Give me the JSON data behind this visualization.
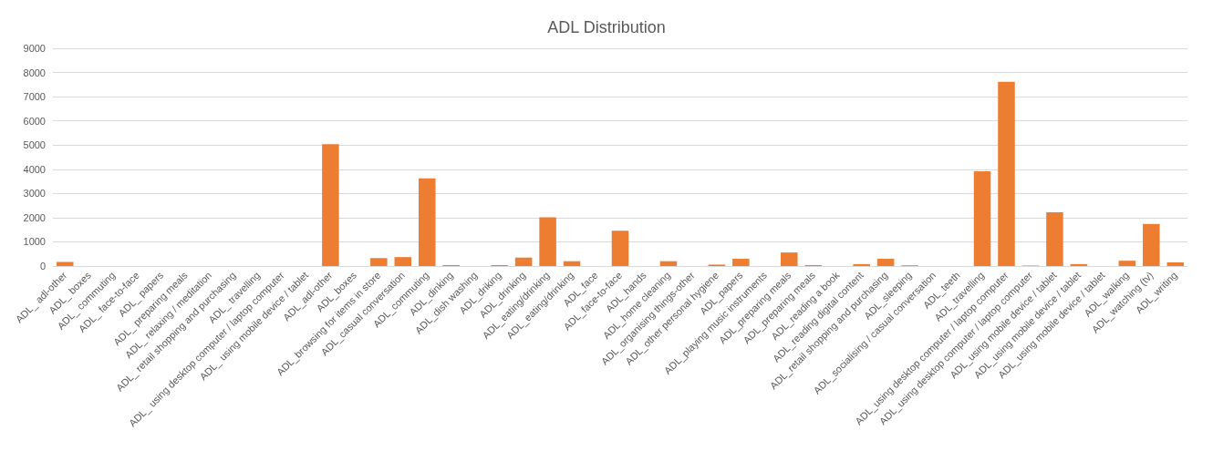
{
  "chart_data": {
    "type": "bar",
    "title": "ADL Distribution",
    "categories": [
      "ADL_ adl-other",
      "ADL_ boxes",
      "ADL_ commuting",
      "ADL_ face-to-face",
      "ADL_ papers",
      "ADL_ preparing meals",
      "ADL_ relaxing / meditation",
      "ADL_ retail shopping and purchasing",
      "ADL_ travelling",
      "ADL_ using desktop computer / laptop computer",
      "ADL_ using mobile device / tablet",
      "ADL_adl-other",
      "ADL_boxes",
      "ADL_browsing for items in store",
      "ADL_casual conversation",
      "ADL_commuting",
      "ADL_dinking",
      "ADL_dish washing",
      "ADL_driking",
      "ADL_drinking",
      "ADL_eating/drinking",
      "ADL_eating/drinking",
      "ADL_face",
      "ADL_face-to-face",
      "ADL_hands",
      "ADL_home cleaning",
      "ADL_organising things-other",
      "ADL_other personal hygiene",
      "ADL_papers",
      "ADL_playing music instruments",
      "ADL_preparing meals",
      "ADL_preparing meals",
      "ADL_reading a book",
      "ADL_reading digital content",
      "ADL_retail shopping and purchasing",
      "ADL_sleeping",
      "ADL_socialising / casual conversation",
      "ADL_teeth",
      "ADL_travelling",
      "ADL_using desktop computer / laptop computer",
      "ADL_using desktop computer / laptop computer",
      "ADL_using mobile device / tablet",
      "ADL_using mobile device / tablet",
      "ADL_using mobile device / tablet",
      "ADL_walking",
      "ADL_watching (tv)",
      "ADL_writing"
    ],
    "values": [
      170,
      0,
      0,
      0,
      0,
      0,
      0,
      0,
      0,
      0,
      0,
      5040,
      0,
      330,
      370,
      3620,
      40,
      0,
      40,
      350,
      2010,
      200,
      0,
      1460,
      0,
      200,
      0,
      60,
      300,
      0,
      560,
      40,
      0,
      80,
      300,
      30,
      0,
      0,
      3920,
      7620,
      20,
      2220,
      80,
      0,
      220,
      1740,
      150
    ],
    "color": "#ed7d31",
    "ylim": [
      0,
      9000
    ],
    "yticks": [
      0,
      1000,
      2000,
      3000,
      4000,
      5000,
      6000,
      7000,
      8000,
      9000
    ],
    "grid": "y"
  }
}
